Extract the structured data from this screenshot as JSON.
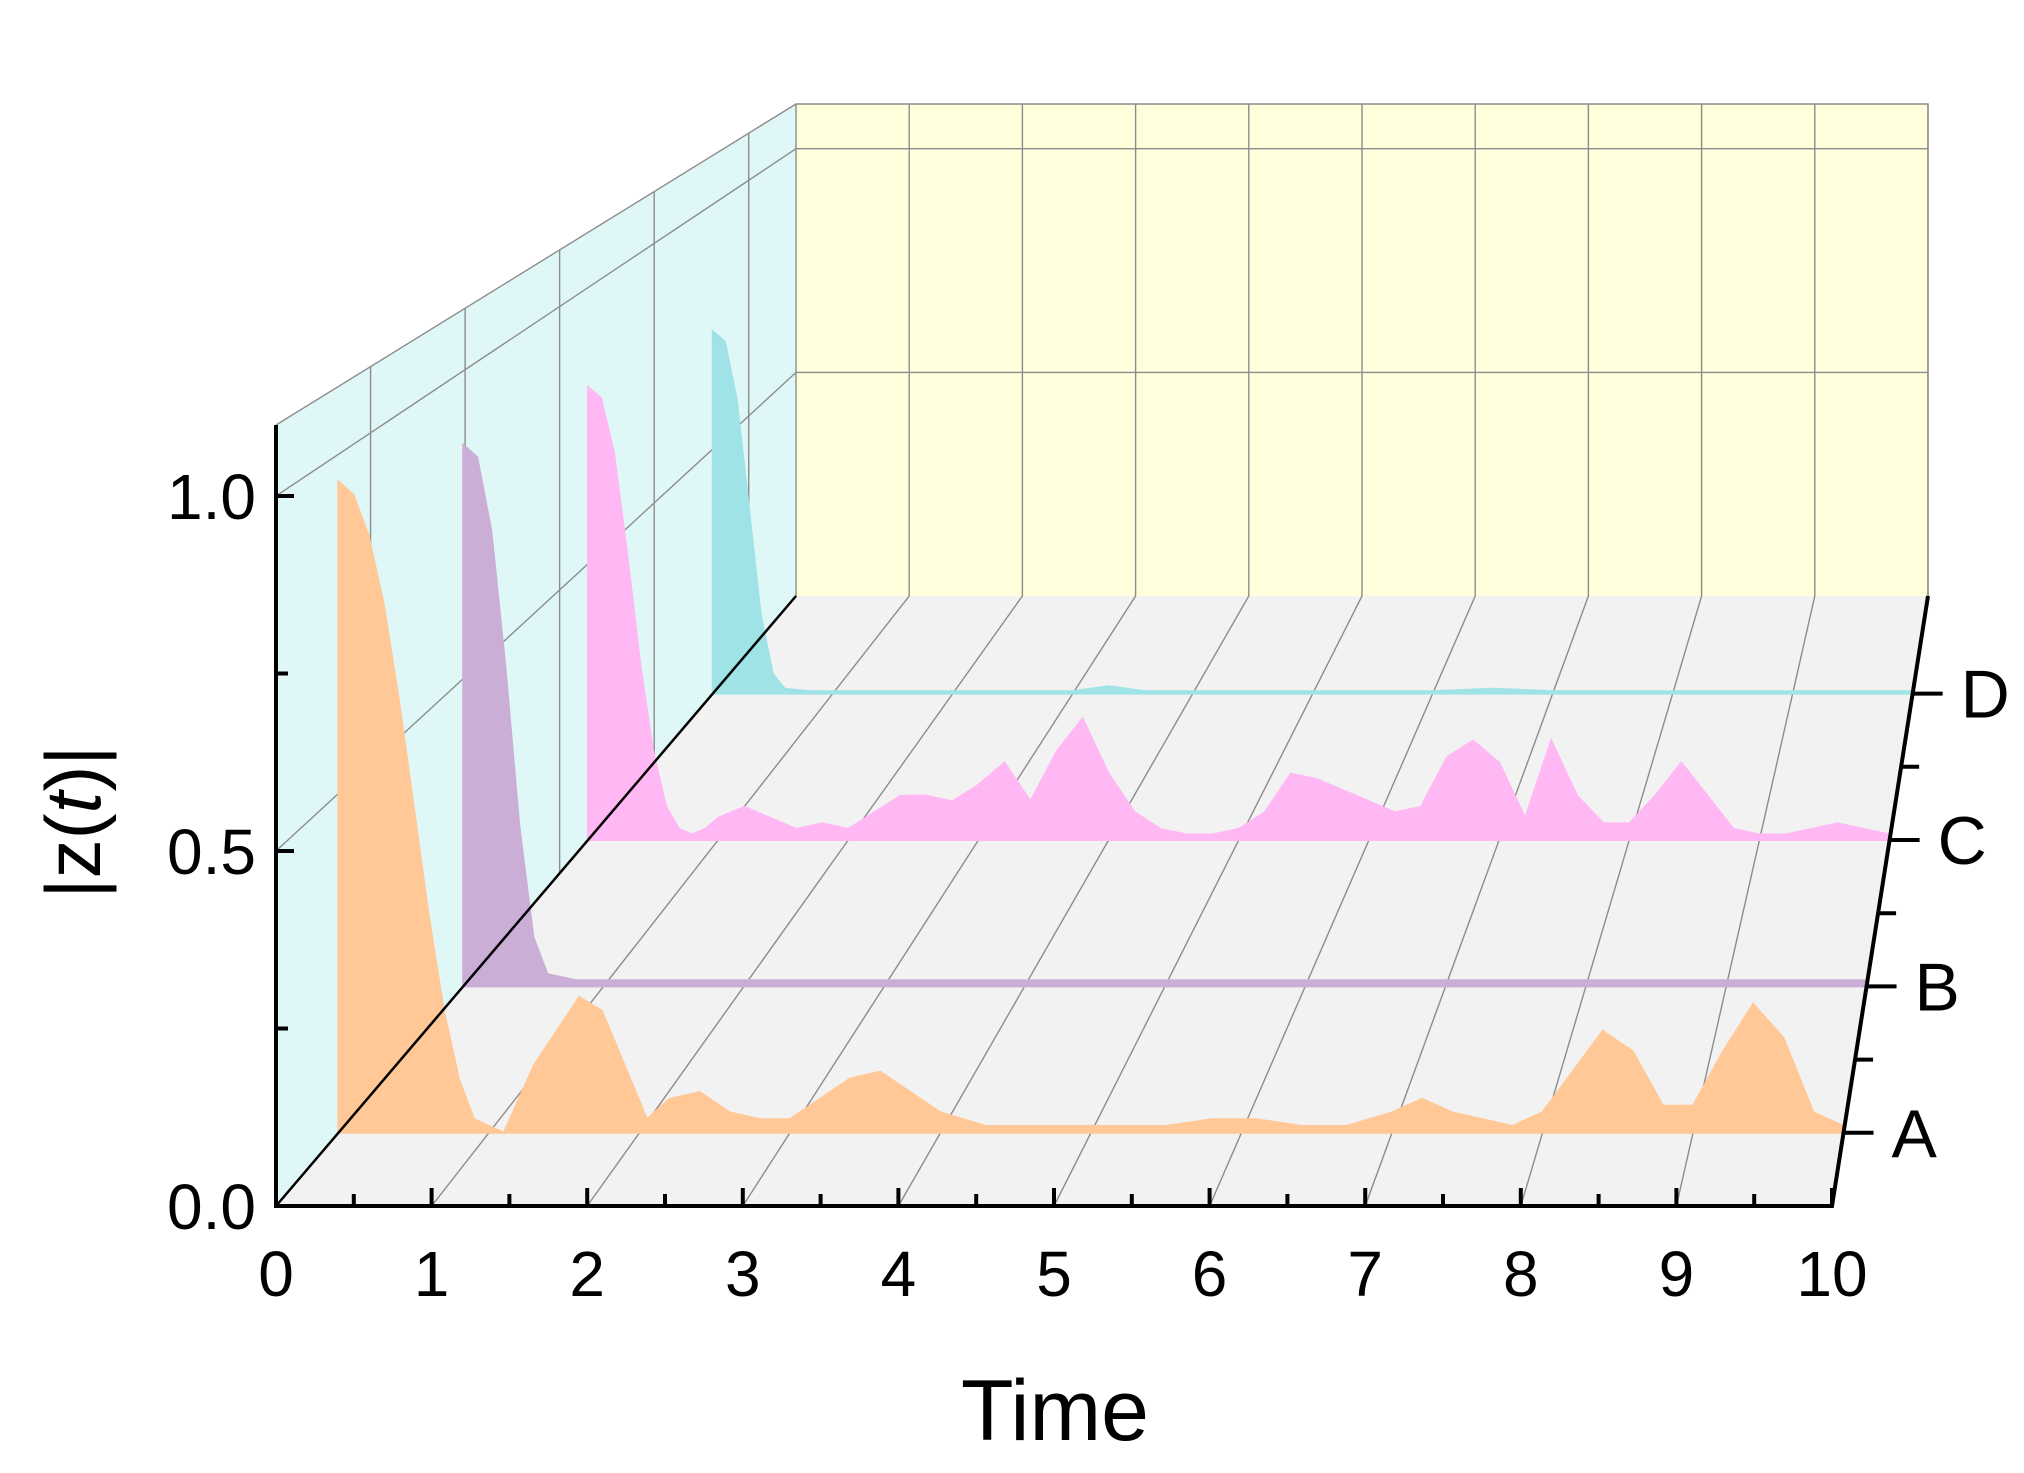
{
  "chart_data": {
    "type": "area",
    "subtype": "3d-waterfall",
    "title": "",
    "xlabel": "Time",
    "ylabel_parts": [
      "|z(",
      "t",
      ")|"
    ],
    "xlim": [
      0,
      10
    ],
    "ylim": [
      0,
      1.0
    ],
    "x_ticks": [
      "0",
      "1",
      "2",
      "3",
      "4",
      "5",
      "6",
      "7",
      "8",
      "9",
      "10"
    ],
    "y_ticks": [
      "0.0",
      "0.5",
      "1.0"
    ],
    "series": [
      {
        "name": "A",
        "color": "#ffc896",
        "x": [
          0,
          0.1,
          0.2,
          0.3,
          0.4,
          0.5,
          0.6,
          0.7,
          0.8,
          0.9,
          1.0,
          1.1,
          1.2,
          1.3,
          1.45,
          1.6,
          1.75,
          1.9,
          2.05,
          2.2,
          2.4,
          2.6,
          2.8,
          3.0,
          3.2,
          3.4,
          3.6,
          3.8,
          4.0,
          4.3,
          4.6,
          4.9,
          5.2,
          5.5,
          5.8,
          6.1,
          6.4,
          6.7,
          7.0,
          7.2,
          7.4,
          7.6,
          7.8,
          8.0,
          8.2,
          8.4,
          8.6,
          8.8,
          9.0,
          9.2,
          9.4,
          9.6,
          9.8,
          10.0
        ],
        "y": [
          0.96,
          0.94,
          0.88,
          0.78,
          0.64,
          0.48,
          0.32,
          0.18,
          0.08,
          0.02,
          0.01,
          0.0,
          0.05,
          0.1,
          0.15,
          0.2,
          0.18,
          0.1,
          0.02,
          0.05,
          0.06,
          0.03,
          0.02,
          0.02,
          0.05,
          0.08,
          0.09,
          0.06,
          0.03,
          0.01,
          0.01,
          0.01,
          0.01,
          0.01,
          0.02,
          0.02,
          0.01,
          0.01,
          0.03,
          0.05,
          0.03,
          0.02,
          0.01,
          0.03,
          0.09,
          0.15,
          0.12,
          0.04,
          0.04,
          0.12,
          0.19,
          0.14,
          0.03,
          0.01
        ]
      },
      {
        "name": "B",
        "color": "#cbaed5",
        "x": [
          0,
          0.1,
          0.2,
          0.3,
          0.4,
          0.5,
          0.6,
          0.8,
          1.0,
          1.5,
          2.0,
          3.0,
          4.0,
          5.0,
          6.0,
          7.0,
          8.0,
          9.0,
          10.0
        ],
        "y": [
          0.88,
          0.86,
          0.74,
          0.52,
          0.26,
          0.08,
          0.02,
          0.01,
          0.01,
          0.01,
          0.01,
          0.01,
          0.01,
          0.01,
          0.01,
          0.01,
          0.01,
          0.01,
          0.01
        ]
      },
      {
        "name": "C",
        "color": "#ffb8f4",
        "x": [
          0,
          0.1,
          0.2,
          0.3,
          0.4,
          0.5,
          0.6,
          0.7,
          0.8,
          0.9,
          1.0,
          1.2,
          1.4,
          1.6,
          1.8,
          2.0,
          2.2,
          2.4,
          2.6,
          2.8,
          3.0,
          3.2,
          3.4,
          3.6,
          3.8,
          4.0,
          4.2,
          4.4,
          4.6,
          4.8,
          5.0,
          5.2,
          5.4,
          5.6,
          5.8,
          6.0,
          6.2,
          6.4,
          6.6,
          6.8,
          7.0,
          7.2,
          7.4,
          7.6,
          7.8,
          8.0,
          8.2,
          8.4,
          8.6,
          8.8,
          9.0,
          9.2,
          9.4,
          9.6,
          9.8,
          10.0
        ],
        "y": [
          0.82,
          0.8,
          0.7,
          0.52,
          0.32,
          0.16,
          0.06,
          0.02,
          0.01,
          0.02,
          0.04,
          0.06,
          0.04,
          0.02,
          0.03,
          0.02,
          0.05,
          0.08,
          0.08,
          0.07,
          0.1,
          0.14,
          0.07,
          0.16,
          0.22,
          0.12,
          0.05,
          0.02,
          0.01,
          0.01,
          0.02,
          0.05,
          0.12,
          0.11,
          0.09,
          0.07,
          0.05,
          0.06,
          0.15,
          0.18,
          0.14,
          0.04,
          0.18,
          0.08,
          0.03,
          0.03,
          0.08,
          0.14,
          0.08,
          0.02,
          0.01,
          0.01,
          0.02,
          0.03,
          0.02,
          0.01
        ]
      },
      {
        "name": "D",
        "color": "#9fe3e6",
        "x": [
          0,
          0.1,
          0.2,
          0.3,
          0.4,
          0.5,
          0.6,
          0.8,
          1.0,
          2.0,
          3.0,
          3.3,
          3.6,
          4.0,
          5.0,
          6.0,
          6.5,
          7.0,
          8.0,
          9.0,
          10.0
        ],
        "y": [
          0.74,
          0.72,
          0.6,
          0.38,
          0.16,
          0.04,
          0.01,
          0.005,
          0.005,
          0.005,
          0.005,
          0.015,
          0.005,
          0.005,
          0.005,
          0.005,
          0.01,
          0.005,
          0.005,
          0.005,
          0.005
        ]
      }
    ]
  }
}
